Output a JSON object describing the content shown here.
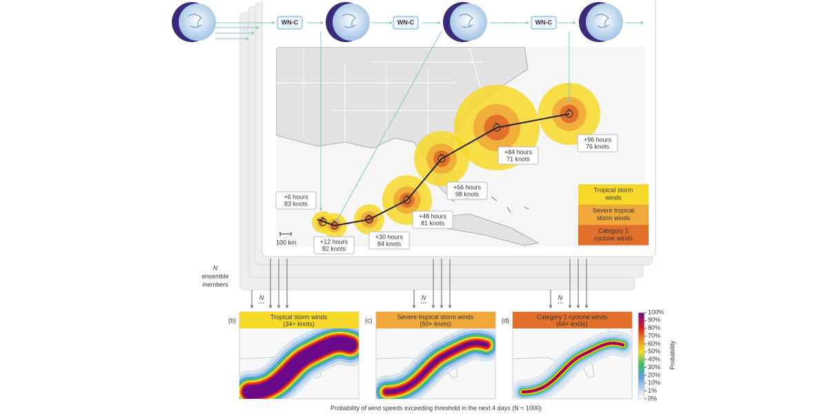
{
  "top": {
    "model_labels": [
      "WN-C",
      "WN-C",
      "WN-C"
    ],
    "ellipsis": "· · ·"
  },
  "map": {
    "forecasts": [
      {
        "hours": "+6 hours",
        "knots": "83 knots"
      },
      {
        "hours": "+12 hours",
        "knots": "82 knots"
      },
      {
        "hours": "+30 hours",
        "knots": "84 knots"
      },
      {
        "hours": "+48 hours",
        "knots": "81 knots"
      },
      {
        "hours": "+66 hours",
        "knots": "98 knots"
      },
      {
        "hours": "+84 hours",
        "knots": "71 knots"
      },
      {
        "hours": "+96 hours",
        "knots": "76 knots"
      }
    ],
    "scale": "100 km",
    "legend": [
      [
        "Tropical storm",
        "winds"
      ],
      [
        "Severe tropical",
        "storm winds"
      ],
      [
        "Category 1",
        "cyclone winds"
      ]
    ]
  },
  "ensemble": {
    "lines": [
      "N",
      "ensemble",
      "members"
    ],
    "n_labels": [
      "N",
      "N",
      "N"
    ]
  },
  "panels": [
    {
      "tag": "(b)",
      "title": "Tropical storm winds",
      "threshold": "(34+ knots)"
    },
    {
      "tag": "(c)",
      "title": "Severe tropical storm winds",
      "threshold": "(50+ knots)"
    },
    {
      "tag": "(d)",
      "title": "Category 1 cyclone winds",
      "threshold": "(64+ knots)"
    }
  ],
  "colorbar": {
    "ticks": [
      "100%",
      "90%",
      "80%",
      "70%",
      "60%",
      "50%",
      "40%",
      "30%",
      "20%",
      "10%",
      "1%",
      "0%"
    ],
    "label": "Probability"
  },
  "caption": "Probability of wind speeds exceeding threshold in the next 4 days (N = 1000)"
}
